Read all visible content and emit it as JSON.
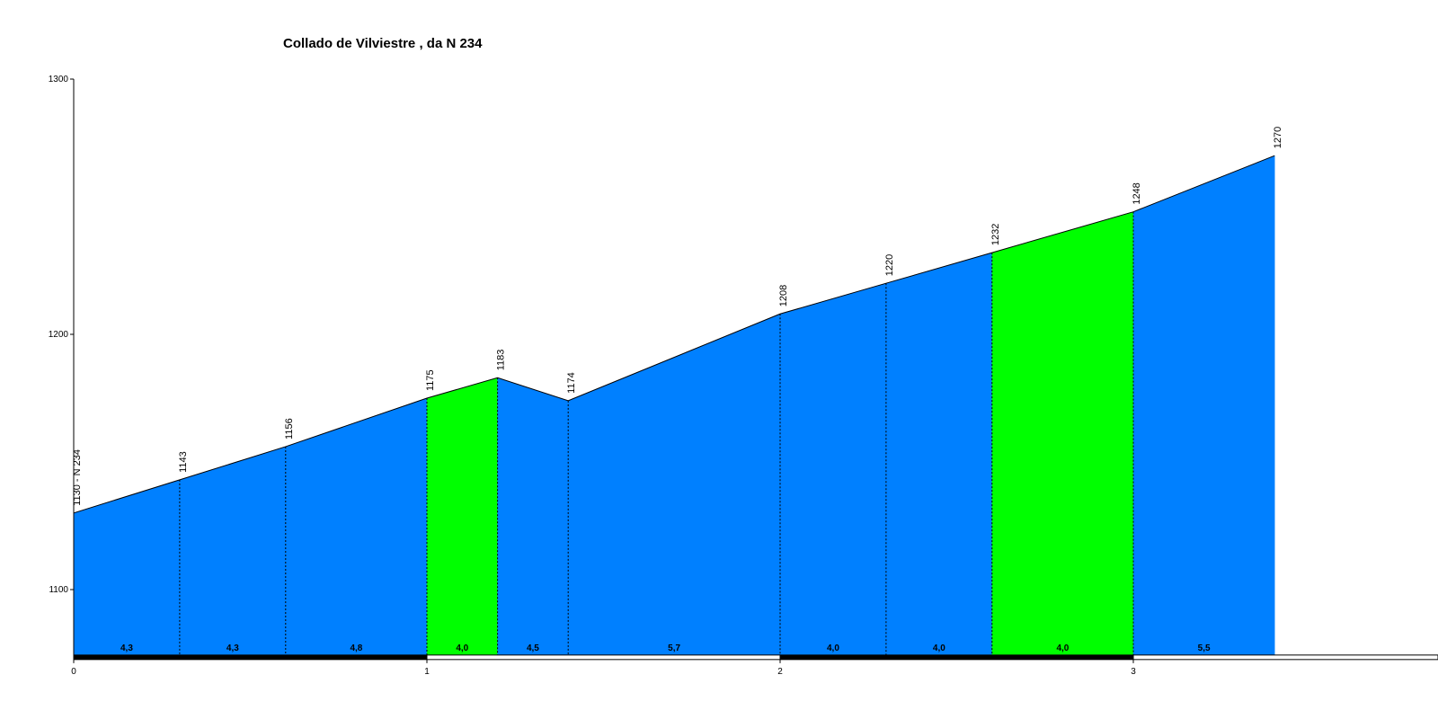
{
  "chart_data": {
    "type": "area",
    "title": "Collado de Vilviestre , da N 234",
    "xlabel": "",
    "ylabel": "",
    "xlim": [
      0,
      3.78
    ],
    "ylim": [
      1074,
      1300
    ],
    "y_ticks": [
      1100,
      1200,
      1300
    ],
    "x_ticks": [
      0,
      1,
      2,
      3
    ],
    "x_tick_labels": [
      "0",
      "1",
      "2",
      "3"
    ],
    "profile": [
      {
        "x": 0.0,
        "y": 1130,
        "label": "1130 - N 234"
      },
      {
        "x": 0.3,
        "y": 1143,
        "label": "1143"
      },
      {
        "x": 0.6,
        "y": 1156,
        "label": "1156"
      },
      {
        "x": 1.0,
        "y": 1175,
        "label": "1175"
      },
      {
        "x": 1.2,
        "y": 1183,
        "label": "1183"
      },
      {
        "x": 1.4,
        "y": 1174,
        "label": "1174"
      },
      {
        "x": 2.0,
        "y": 1208,
        "label": "1208"
      },
      {
        "x": 2.3,
        "y": 1220,
        "label": "1220"
      },
      {
        "x": 2.6,
        "y": 1232,
        "label": "1232"
      },
      {
        "x": 3.0,
        "y": 1248,
        "label": "1248"
      },
      {
        "x": 3.4,
        "y": 1270,
        "label": "1270"
      }
    ],
    "segments": [
      {
        "from": 0.0,
        "to": 0.3,
        "grade": "4,3",
        "color": "#0080ff"
      },
      {
        "from": 0.3,
        "to": 0.6,
        "grade": "4,3",
        "color": "#0080ff"
      },
      {
        "from": 0.6,
        "to": 1.0,
        "grade": "4,8",
        "color": "#0080ff"
      },
      {
        "from": 1.0,
        "to": 1.2,
        "grade": "4,0",
        "color": "#00ff00"
      },
      {
        "from": 1.2,
        "to": 1.4,
        "grade": "4,5",
        "color": "#0080ff"
      },
      {
        "from": 1.4,
        "to": 2.0,
        "grade": "5,7",
        "color": "#0080ff"
      },
      {
        "from": 2.0,
        "to": 2.3,
        "grade": "4,0",
        "color": "#0080ff"
      },
      {
        "from": 2.3,
        "to": 2.6,
        "grade": "4,0",
        "color": "#0080ff"
      },
      {
        "from": 2.6,
        "to": 3.0,
        "grade": "4,0",
        "color": "#00ff00"
      },
      {
        "from": 3.0,
        "to": 3.4,
        "grade": "5,5",
        "color": "#0080ff"
      }
    ],
    "colors": {
      "blue": "#0080ff",
      "green": "#00ff00"
    },
    "grid": false,
    "legend": "none"
  }
}
